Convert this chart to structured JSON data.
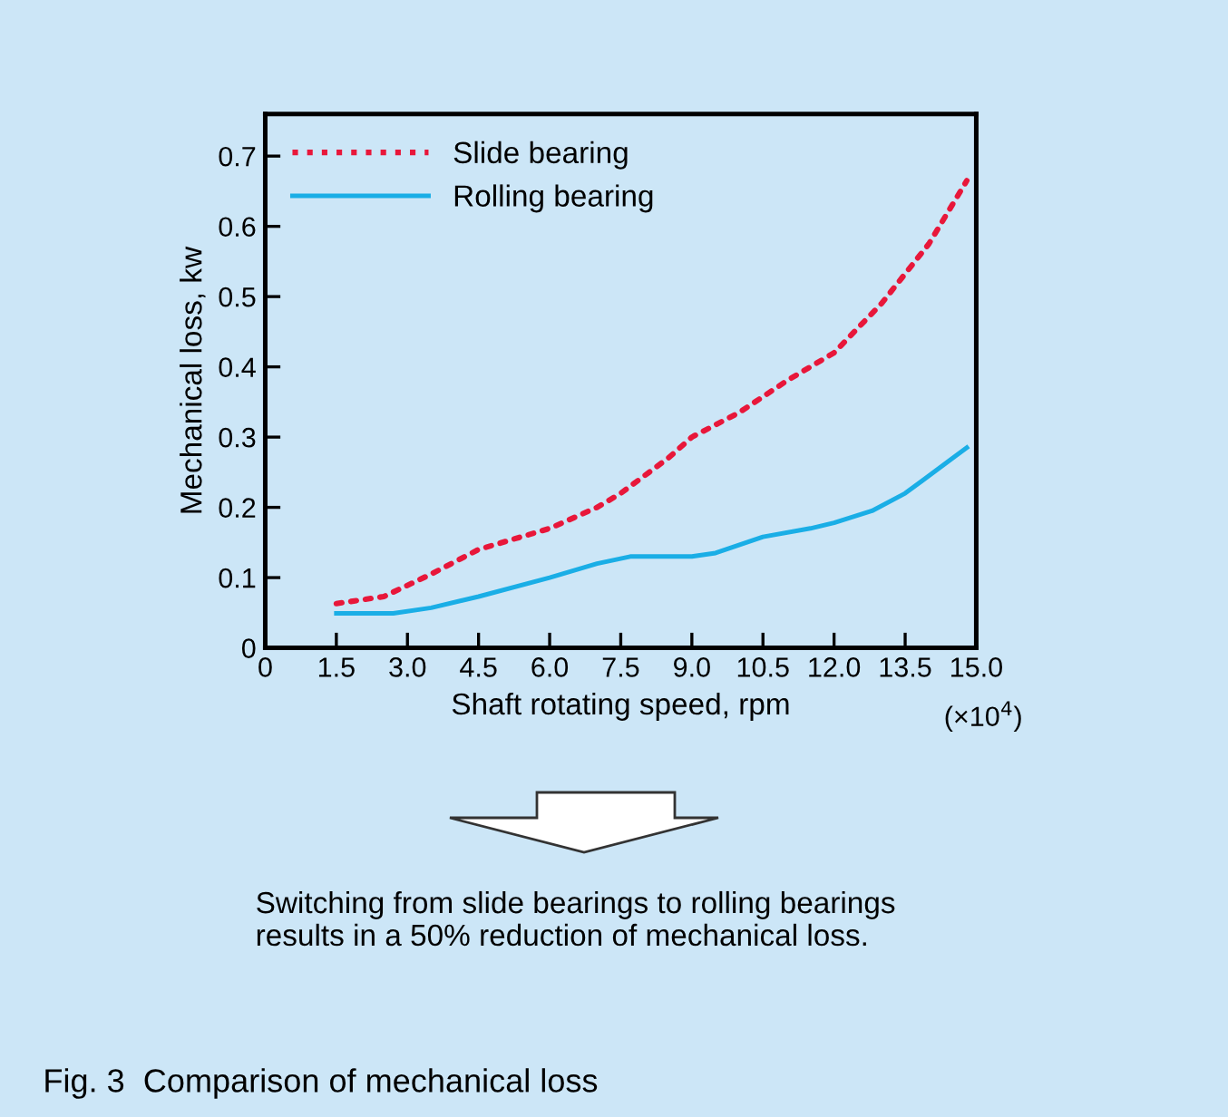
{
  "chart_data": {
    "type": "line",
    "xlabel": "Shaft rotating speed, rpm",
    "ylabel": "Mechanical loss, kw",
    "xlim": [
      0,
      15.0
    ],
    "xticks": [
      0,
      1.5,
      {
        "value": 3.0,
        "label": "3.0"
      },
      4.5,
      {
        "value": 6.0,
        "label": "6.0"
      },
      7.5,
      {
        "value": 9.0,
        "label": "9.0"
      },
      10.5,
      {
        "value": 12.0,
        "label": "12.0"
      },
      13.5,
      {
        "value": 15.0,
        "label": "15.0"
      }
    ],
    "ylim": [
      0,
      0.76
    ],
    "yticks": [
      0,
      0.1,
      0.2,
      0.3,
      0.4,
      0.5,
      0.6,
      0.7
    ],
    "grid": false,
    "legend": "top left",
    "series": [
      {
        "name": "Slide bearing",
        "color": "#e8173a",
        "line_style": "dotted",
        "x": [
          1.5,
          2.5,
          3.5,
          4.5,
          6.0,
          7.0,
          7.5,
          8.5,
          9.0,
          10.0,
          11.0,
          12.0,
          13.0,
          14.0,
          14.8
        ],
        "values": [
          0.063,
          0.073,
          0.105,
          0.14,
          0.17,
          0.2,
          0.22,
          0.27,
          0.3,
          0.335,
          0.38,
          0.42,
          0.49,
          0.575,
          0.665
        ]
      },
      {
        "name": "Rolling bearing",
        "color": "#1aaee6",
        "line_style": "solid",
        "x": [
          1.5,
          2.7,
          3.5,
          4.5,
          6.0,
          7.0,
          7.7,
          9.0,
          9.5,
          10.5,
          11.5,
          12.0,
          12.8,
          13.5,
          14.8
        ],
        "values": [
          0.049,
          0.049,
          0.057,
          0.073,
          0.1,
          0.12,
          0.13,
          0.13,
          0.135,
          0.158,
          0.17,
          0.178,
          0.195,
          0.22,
          0.285
        ]
      }
    ],
    "annotations": [
      "(×10$^{4}$)",
      "Switching from slide bearings to rolling bearings\nresults in a 50% reduction of mechanical loss.",
      "Fig. 3  Comparison of mechanical loss"
    ]
  }
}
